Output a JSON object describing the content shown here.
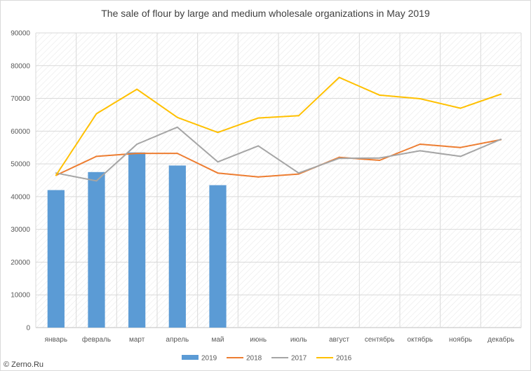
{
  "chart_data": {
    "type": "bar",
    "title": "The sale of flour by large and medium wholesale organizations in May 2019",
    "categories": [
      "январь",
      "февраль",
      "март",
      "апрель",
      "май",
      "июнь",
      "июль",
      "август",
      "сентябрь",
      "октябрь",
      "ноябрь",
      "декабрь"
    ],
    "ylim": [
      0,
      90000
    ],
    "yticks": [
      "0",
      "10000",
      "20000",
      "30000",
      "40000",
      "50000",
      "60000",
      "70000",
      "80000",
      "90000"
    ],
    "grid": true,
    "legend_position": "bottom",
    "series": [
      {
        "name": "2019",
        "kind": "bar",
        "color": "#5b9bd5",
        "values": [
          42000,
          47500,
          53500,
          49500,
          43500,
          null,
          null,
          null,
          null,
          null,
          null,
          null
        ]
      },
      {
        "name": "2018",
        "kind": "line",
        "color": "#ed7d31",
        "values": [
          46500,
          52300,
          53200,
          53200,
          47200,
          46000,
          46900,
          52000,
          51100,
          56000,
          55000,
          57400
        ]
      },
      {
        "name": "2017",
        "kind": "line",
        "color": "#a5a5a5",
        "values": [
          47200,
          44800,
          56000,
          61200,
          50600,
          55500,
          47200,
          51700,
          51800,
          54000,
          52300,
          57500
        ]
      },
      {
        "name": "2016",
        "kind": "line",
        "color": "#ffc000",
        "values": [
          46500,
          65300,
          72800,
          64200,
          59600,
          64000,
          64700,
          76400,
          71000,
          69900,
          67000,
          71300
        ]
      }
    ]
  },
  "credit": "© Zerno.Ru"
}
